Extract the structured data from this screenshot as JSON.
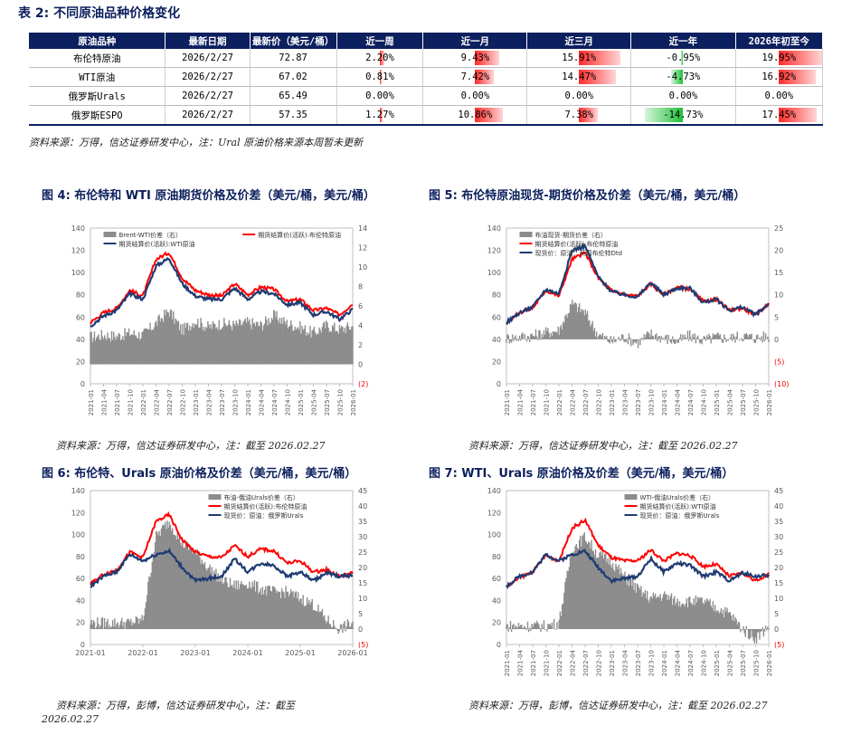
{
  "table": {
    "title": "表 2:  不同原油品种价格变化",
    "headers": [
      "原油品种",
      "最新日期",
      "最新价（美元/桶）",
      "近一周",
      "近一月",
      "近三月",
      "近一年",
      "2026年初至今"
    ],
    "rows": [
      {
        "name": "布伦特原油",
        "date": "2026/2/27",
        "price": "72.87",
        "changes": [
          "2.20%",
          "9.43%",
          "15.91%",
          "-0.95%",
          "19.95%"
        ],
        "values": [
          2.2,
          9.43,
          15.91,
          -0.95,
          19.95
        ]
      },
      {
        "name": "WTI原油",
        "date": "2026/2/27",
        "price": "67.02",
        "changes": [
          "0.81%",
          "7.42%",
          "14.47%",
          "-4.73%",
          "16.92%"
        ],
        "values": [
          0.81,
          7.42,
          14.47,
          -4.73,
          16.92
        ]
      },
      {
        "name": "俄罗斯Urals",
        "date": "2026/2/27",
        "price": "65.49",
        "changes": [
          "0.00%",
          "0.00%",
          "0.00%",
          "0.00%",
          "0.00%"
        ],
        "values": [
          0,
          0,
          0,
          0,
          0
        ]
      },
      {
        "name": "俄罗斯ESPO",
        "date": "2026/2/27",
        "price": "57.35",
        "changes": [
          "1.27%",
          "10.86%",
          "7.38%",
          "-14.73%",
          "17.45%"
        ],
        "values": [
          1.27,
          10.86,
          7.38,
          -14.73,
          17.45
        ]
      }
    ],
    "source": "资料来源：万得，信达证券研发中心，注：Ural 原油价格来源本周暂未更新"
  },
  "colors": {
    "header": "#0c1f5e",
    "red": "#ff0000",
    "blue": "#1f3b73",
    "gray": "#8c8c8c",
    "title": "#0b1f5c"
  },
  "chart_data": [
    {
      "type": "line",
      "figure_title": "图 4:  布伦特和  WTI 原油期货价格及价差（美元/桶，美元/桶）",
      "ylim": [
        0,
        140
      ],
      "y2lim": [
        -2,
        14
      ],
      "yticks": [
        "0",
        "20",
        "40",
        "60",
        "80",
        "100",
        "120",
        "140"
      ],
      "y2ticks": [
        "(2)",
        "0",
        "2",
        "4",
        "6",
        "8",
        "10",
        "12",
        "14"
      ],
      "xticks": [
        "2021-01",
        "2021-04",
        "2021-07",
        "2021-10",
        "2022-01",
        "2022-04",
        "2022-07",
        "2022-10",
        "2023-01",
        "2023-04",
        "2023-07",
        "2023-10",
        "2024-01",
        "2024-04",
        "2024-07",
        "2024-10",
        "2025-01",
        "2025-04",
        "2025-07",
        "2025-10",
        "2026-01"
      ],
      "series": [
        {
          "name": "Brent-WTI价差（右）",
          "axis": "right",
          "kind": "area",
          "values": [
            2.8,
            3.0,
            2.9,
            3.2,
            3.0,
            4.2,
            5.5,
            3.5,
            4.5,
            3.8,
            4.2,
            4.0,
            4.3,
            4.0,
            5.0,
            4.2,
            3.8,
            3.2,
            4.0,
            3.6,
            3.9
          ]
        },
        {
          "name": "期货结算价(活跃):布伦特原油",
          "axis": "left",
          "kind": "line",
          "values": [
            55,
            64,
            68,
            84,
            79,
            112,
            118,
            95,
            84,
            80,
            79,
            90,
            80,
            87,
            85,
            74,
            76,
            66,
            68,
            62,
            72
          ]
        },
        {
          "name": "期货结算价(活跃):WTI原油",
          "axis": "left",
          "kind": "line",
          "values": [
            52,
            61,
            66,
            81,
            76,
            106,
            113,
            90,
            79,
            76,
            76,
            86,
            76,
            83,
            81,
            71,
            73,
            62,
            65,
            58,
            67
          ]
        }
      ],
      "source": "资料来源：万得，信达证券研发中心，注：截至 2026.02.27"
    },
    {
      "type": "line",
      "figure_title": "图 5:  布伦特原油现货-期货价格及价差（美元/桶，美元/桶）",
      "ylim": [
        0,
        140
      ],
      "y2lim": [
        -10,
        25
      ],
      "yticks": [
        "0",
        "20",
        "40",
        "60",
        "80",
        "100",
        "120",
        "140"
      ],
      "y2ticks": [
        "(10)",
        "(5)",
        "0",
        "5",
        "10",
        "15",
        "20",
        "25"
      ],
      "xticks": [
        "2021-01",
        "2021-04",
        "2021-07",
        "2021-10",
        "2022-01",
        "2022-04",
        "2022-07",
        "2022-10",
        "2023-01",
        "2023-04",
        "2023-07",
        "2023-10",
        "2024-01",
        "2024-04",
        "2024-07",
        "2024-10",
        "2025-01",
        "2025-04",
        "2025-07",
        "2025-10",
        "2026-01"
      ],
      "series": [
        {
          "name": "布油现货-期货价差（右）",
          "axis": "right",
          "kind": "area",
          "values": [
            0.2,
            0.5,
            0.8,
            1.5,
            2.0,
            8.0,
            6.0,
            1.0,
            -0.5,
            0.5,
            -0.8,
            1.2,
            0.3,
            -0.5,
            0.8,
            -0.3,
            0.5,
            0.2,
            0.8,
            0.3,
            0.6
          ]
        },
        {
          "name": "期货结算价(活跃):布伦特原油",
          "axis": "left",
          "kind": "line",
          "values": [
            55,
            64,
            68,
            84,
            79,
            112,
            118,
            95,
            84,
            80,
            79,
            90,
            80,
            87,
            85,
            74,
            76,
            66,
            68,
            62,
            72
          ]
        },
        {
          "name": "现货价：原油：英国布伦特Dtd",
          "axis": "left",
          "kind": "line",
          "values": [
            55,
            64,
            69,
            85,
            81,
            120,
            124,
            96,
            83,
            80,
            78,
            91,
            80,
            86,
            86,
            73,
            76,
            66,
            69,
            62,
            72
          ]
        }
      ],
      "source": "资料来源：万得，信达证券研发中心，注：截至 2026.02.27"
    },
    {
      "type": "line",
      "figure_title": "图 6:  布伦特、Urals 原油价格及价差（美元/桶，美元/桶）",
      "ylim": [
        0,
        140
      ],
      "y2lim": [
        -5,
        45
      ],
      "yticks": [
        "0",
        "20",
        "40",
        "60",
        "80",
        "100",
        "120",
        "140"
      ],
      "y2ticks": [
        "(5)",
        "0",
        "5",
        "10",
        "15",
        "20",
        "25",
        "30",
        "35",
        "40",
        "45"
      ],
      "xticks": [
        "2021-01",
        "2022-01",
        "2023-01",
        "2024-01",
        "2025-01",
        "2026-01"
      ],
      "series": [
        {
          "name": "布油-俄油Urals价差（右）",
          "axis": "right",
          "kind": "area",
          "values": [
            2,
            2,
            2,
            2,
            3,
            30,
            35,
            28,
            25,
            20,
            16,
            14,
            15,
            13,
            12,
            12,
            10,
            8,
            3,
            0,
            2
          ]
        },
        {
          "name": "期货结算价(活跃):布伦特原油",
          "axis": "left",
          "kind": "line",
          "values": [
            55,
            64,
            68,
            84,
            79,
            112,
            118,
            95,
            84,
            80,
            79,
            90,
            80,
            87,
            85,
            74,
            76,
            66,
            68,
            62,
            65
          ]
        },
        {
          "name": "现货价：原油：俄罗斯Urals",
          "axis": "left",
          "kind": "line",
          "values": [
            53,
            62,
            66,
            82,
            76,
            82,
            85,
            70,
            58,
            60,
            62,
            78,
            66,
            74,
            72,
            62,
            66,
            58,
            65,
            62,
            63
          ]
        }
      ],
      "source_lines": [
        "资料来源：万得，彭博，信达证券研发中心，注：截至",
        "2026.02.27"
      ]
    },
    {
      "type": "line",
      "figure_title": "图 7:  WTI、Urals 原油价格及价差（美元/桶，美元/桶）",
      "ylim": [
        0,
        140
      ],
      "y2lim": [
        -5,
        45
      ],
      "yticks": [
        "0",
        "20",
        "40",
        "60",
        "80",
        "100",
        "120",
        "140"
      ],
      "y2ticks": [
        "(5)",
        "0",
        "5",
        "10",
        "15",
        "20",
        "25",
        "30",
        "35",
        "40",
        "45"
      ],
      "xticks": [
        "2021-01",
        "2021-04",
        "2021-07",
        "2021-10",
        "2022-01",
        "2022-04",
        "2022-07",
        "2022-10",
        "2023-01",
        "2023-04",
        "2023-07",
        "2023-10",
        "2024-01",
        "2024-04",
        "2024-07",
        "2024-10",
        "2025-01",
        "2025-04",
        "2025-07",
        "2025-10",
        "2026-01"
      ],
      "series": [
        {
          "name": "WTI-俄油Urals价差（右）",
          "axis": "right",
          "kind": "area",
          "values": [
            1,
            1,
            1,
            1,
            2,
            26,
            30,
            24,
            22,
            17,
            13,
            10,
            11,
            9,
            9,
            9,
            7,
            5,
            0,
            -3,
            1
          ]
        },
        {
          "name": "期货结算价(活跃):WTI原油",
          "axis": "left",
          "kind": "line",
          "values": [
            52,
            61,
            66,
            81,
            76,
            106,
            113,
            90,
            79,
            76,
            76,
            86,
            76,
            83,
            81,
            71,
            73,
            62,
            65,
            58,
            64
          ]
        },
        {
          "name": "现货价：原油：俄罗斯Urals",
          "axis": "left",
          "kind": "line",
          "values": [
            53,
            62,
            66,
            82,
            76,
            82,
            85,
            70,
            58,
            60,
            62,
            78,
            66,
            74,
            72,
            62,
            66,
            58,
            65,
            62,
            63
          ]
        }
      ],
      "source": "资料来源：万得，彭博，信达证券研发中心，注：截至 2026.02.27"
    }
  ]
}
